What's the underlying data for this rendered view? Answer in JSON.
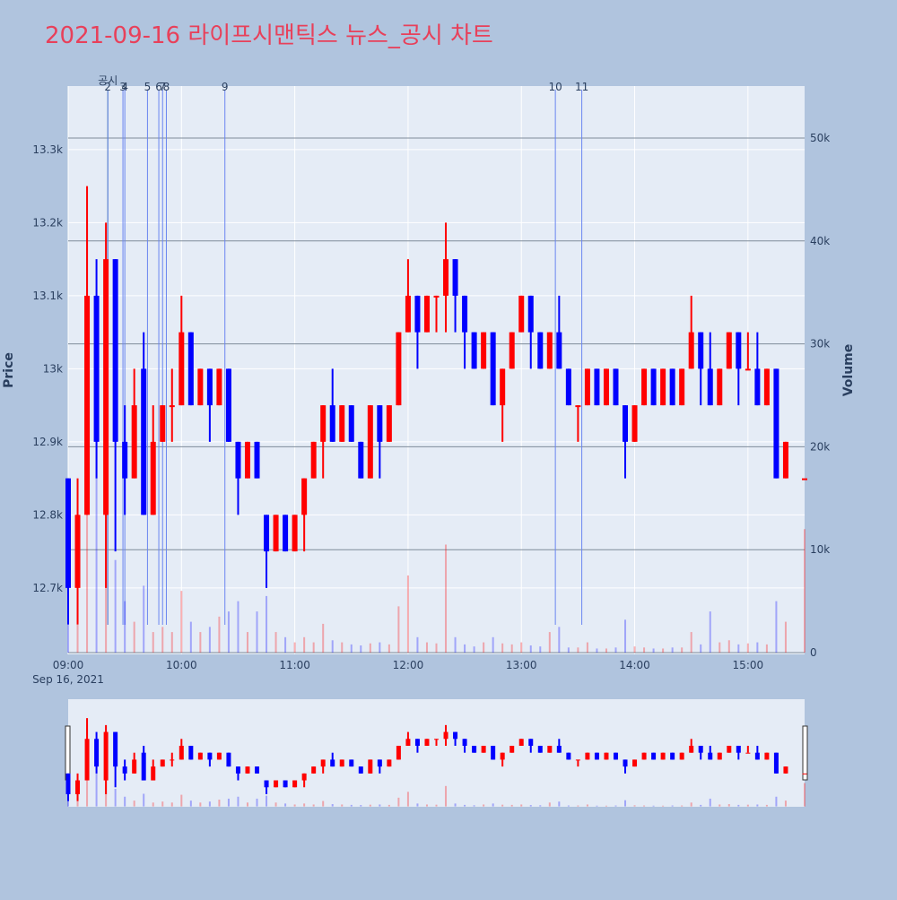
{
  "chart_data": {
    "type": "candlestick",
    "title": "2021-09-16 라이프시맨틱스 뉴스_공시 차트",
    "y_label": "Price",
    "y2_label": "Volume",
    "x_date_label": "Sep 16, 2021",
    "increasing_color": "#ff0000",
    "decreasing_color": "#0000ff",
    "x": [
      "2021-09-16 09:00",
      "2021-09-16 09:05",
      "2021-09-16 09:10",
      "2021-09-16 09:15",
      "2021-09-16 09:20",
      "2021-09-16 09:25",
      "2021-09-16 09:30",
      "2021-09-16 09:35",
      "2021-09-16 09:40",
      "2021-09-16 09:45",
      "2021-09-16 09:50",
      "2021-09-16 09:55",
      "2021-09-16 10:00",
      "2021-09-16 10:05",
      "2021-09-16 10:10",
      "2021-09-16 10:15",
      "2021-09-16 10:20",
      "2021-09-16 10:25",
      "2021-09-16 10:30",
      "2021-09-16 10:35",
      "2021-09-16 10:40",
      "2021-09-16 10:45",
      "2021-09-16 10:50",
      "2021-09-16 10:55",
      "2021-09-16 11:00",
      "2021-09-16 11:05",
      "2021-09-16 11:10",
      "2021-09-16 11:15",
      "2021-09-16 11:20",
      "2021-09-16 11:25",
      "2021-09-16 11:30",
      "2021-09-16 11:35",
      "2021-09-16 11:40",
      "2021-09-16 11:45",
      "2021-09-16 11:50",
      "2021-09-16 11:55",
      "2021-09-16 12:00",
      "2021-09-16 12:05",
      "2021-09-16 12:10",
      "2021-09-16 12:15",
      "2021-09-16 12:20",
      "2021-09-16 12:25",
      "2021-09-16 12:30",
      "2021-09-16 12:35",
      "2021-09-16 12:40",
      "2021-09-16 12:45",
      "2021-09-16 12:50",
      "2021-09-16 12:55",
      "2021-09-16 13:00",
      "2021-09-16 13:05",
      "2021-09-16 13:10",
      "2021-09-16 13:15",
      "2021-09-16 13:20",
      "2021-09-16 13:25",
      "2021-09-16 13:30",
      "2021-09-16 13:35",
      "2021-09-16 13:40",
      "2021-09-16 13:45",
      "2021-09-16 13:50",
      "2021-09-16 13:55",
      "2021-09-16 14:00",
      "2021-09-16 14:05",
      "2021-09-16 14:10",
      "2021-09-16 14:15",
      "2021-09-16 14:20",
      "2021-09-16 14:25",
      "2021-09-16 14:30",
      "2021-09-16 14:35",
      "2021-09-16 14:40",
      "2021-09-16 14:45",
      "2021-09-16 14:50",
      "2021-09-16 14:55",
      "2021-09-16 15:00",
      "2021-09-16 15:05",
      "2021-09-16 15:10",
      "2021-09-16 15:15",
      "2021-09-16 15:20",
      "2021-09-16 15:30"
    ],
    "open": [
      12850,
      12700,
      12800,
      13100,
      12800,
      13150,
      12900,
      12850,
      13000,
      12800,
      12900,
      12950,
      12950,
      13050,
      12950,
      13000,
      12950,
      13000,
      12900,
      12850,
      12900,
      12800,
      12750,
      12800,
      12750,
      12800,
      12850,
      12900,
      12950,
      12900,
      12950,
      12900,
      12850,
      12950,
      12900,
      12950,
      13050,
      13100,
      13050,
      13100,
      13100,
      13150,
      13100,
      13050,
      13000,
      13050,
      12950,
      13000,
      13050,
      13100,
      13050,
      13000,
      13050,
      13000,
      12950,
      12950,
      13000,
      12950,
      13000,
      12950,
      12900,
      12950,
      13000,
      12950,
      13000,
      12950,
      13000,
      13050,
      13000,
      12950,
      13000,
      13050,
      13000,
      13000,
      12950,
      13000,
      12850,
      12850
    ],
    "high": [
      12850,
      12850,
      13250,
      13150,
      13200,
      13150,
      12950,
      13000,
      13050,
      12950,
      12950,
      13000,
      13100,
      13050,
      13000,
      13000,
      13000,
      13000,
      12900,
      12900,
      12900,
      12800,
      12800,
      12800,
      12800,
      12850,
      12900,
      12950,
      13000,
      12950,
      12950,
      12900,
      12950,
      12950,
      12950,
      13050,
      13150,
      13100,
      13100,
      13100,
      13200,
      13150,
      13100,
      13050,
      13050,
      13050,
      13000,
      13050,
      13100,
      13100,
      13050,
      13050,
      13100,
      13000,
      12950,
      13000,
      13000,
      13000,
      13000,
      12950,
      12950,
      13000,
      13000,
      13000,
      13000,
      13000,
      13100,
      13050,
      13050,
      13000,
      13050,
      13050,
      13050,
      13050,
      13000,
      13000,
      12900,
      12850
    ],
    "low": [
      12650,
      12650,
      12800,
      12850,
      12700,
      12750,
      12800,
      12850,
      12800,
      12800,
      12900,
      12900,
      12950,
      12950,
      12950,
      12900,
      12950,
      12900,
      12800,
      12850,
      12850,
      12700,
      12750,
      12750,
      12750,
      12750,
      12850,
      12850,
      12900,
      12900,
      12900,
      12850,
      12850,
      12850,
      12900,
      12950,
      13050,
      13000,
      13050,
      13050,
      13050,
      13050,
      13000,
      13000,
      13000,
      12950,
      12900,
      13000,
      13050,
      13000,
      13000,
      13000,
      13000,
      12950,
      12900,
      12950,
      12950,
      12950,
      12950,
      12850,
      12900,
      12950,
      12950,
      12950,
      12950,
      12950,
      13000,
      12950,
      12950,
      12950,
      13000,
      12950,
      13000,
      12950,
      12950,
      12850,
      12850,
      12850
    ],
    "close": [
      12700,
      12800,
      13100,
      12900,
      13150,
      12900,
      12850,
      12950,
      12800,
      12900,
      12950,
      12950,
      13050,
      12950,
      13000,
      12950,
      13000,
      12900,
      12850,
      12900,
      12850,
      12750,
      12800,
      12750,
      12800,
      12850,
      12900,
      12950,
      12900,
      12950,
      12900,
      12850,
      12950,
      12900,
      12950,
      13050,
      13100,
      13050,
      13100,
      13100,
      13150,
      13100,
      13050,
      13000,
      13050,
      12950,
      13000,
      13050,
      13100,
      13050,
      13000,
      13050,
      13000,
      12950,
      12950,
      13000,
      12950,
      13000,
      12950,
      12900,
      12950,
      13000,
      12950,
      13000,
      12950,
      13000,
      13050,
      13000,
      12950,
      13000,
      13050,
      13000,
      13000,
      12950,
      13000,
      12850,
      12900,
      12850
    ],
    "volume": [
      4000,
      6000,
      42000,
      30000,
      20000,
      9000,
      5000,
      3000,
      6500,
      2000,
      2500,
      2000,
      6000,
      3000,
      2000,
      2500,
      3500,
      4000,
      5000,
      2000,
      4000,
      5500,
      2000,
      1500,
      1000,
      1500,
      1000,
      2800,
      1200,
      1000,
      800,
      700,
      900,
      1000,
      800,
      4500,
      7500,
      1500,
      1000,
      900,
      10500,
      1500,
      800,
      600,
      1000,
      1500,
      900,
      800,
      1000,
      700,
      600,
      2000,
      2500,
      500,
      500,
      1000,
      400,
      400,
      500,
      3200,
      600,
      500,
      400,
      400,
      500,
      500,
      2000,
      800,
      4000,
      1000,
      1200,
      800,
      900,
      1000,
      800,
      5000,
      3000,
      12000
    ],
    "xlim": [
      "2021-09-16 09:00",
      "2021-09-16 15:30"
    ],
    "xticks": [
      {
        "value": "2021-09-16 09:00",
        "label": "09:00"
      },
      {
        "value": "2021-09-16 10:00",
        "label": "10:00"
      },
      {
        "value": "2021-09-16 11:00",
        "label": "11:00"
      },
      {
        "value": "2021-09-16 12:00",
        "label": "12:00"
      },
      {
        "value": "2021-09-16 13:00",
        "label": "13:00"
      },
      {
        "value": "2021-09-16 14:00",
        "label": "14:00"
      },
      {
        "value": "2021-09-16 15:00",
        "label": "15:00"
      }
    ],
    "ylim": [
      12609,
      13387
    ],
    "yticks": [
      {
        "value": 12700,
        "label": "12.7k"
      },
      {
        "value": 12800,
        "label": "12.8k"
      },
      {
        "value": 12900,
        "label": "12.9k"
      },
      {
        "value": 13000,
        "label": "13k"
      },
      {
        "value": 13100,
        "label": "13.1k"
      },
      {
        "value": 13200,
        "label": "13.2k"
      },
      {
        "value": 13300,
        "label": "13.3k"
      }
    ],
    "y2lim": [
      -170,
      55050
    ],
    "y2ticks": [
      0,
      {
        "value": 10000,
        "label": "10k"
      },
      {
        "value": 20000,
        "label": "20k"
      },
      {
        "value": 30000,
        "label": "30k"
      },
      {
        "value": 40000,
        "label": "40k"
      },
      {
        "value": 50000,
        "label": "50k"
      }
    ],
    "annotations": [
      {
        "x": "2021-09-16 09:21",
        "label": "공시"
      },
      {
        "x": "2021-09-16 09:21",
        "label": "2"
      },
      {
        "x": "2021-09-16 09:29",
        "label": "3"
      },
      {
        "x": "2021-09-16 09:30",
        "label": "4"
      },
      {
        "x": "2021-09-16 09:42",
        "label": "5"
      },
      {
        "x": "2021-09-16 09:48",
        "label": "6"
      },
      {
        "x": "2021-09-16 09:50",
        "label": "7"
      },
      {
        "x": "2021-09-16 09:52",
        "label": "8"
      },
      {
        "x": "2021-09-16 10:23",
        "label": "9"
      },
      {
        "x": "2021-09-16 13:18",
        "label": "10"
      },
      {
        "x": "2021-09-16 13:32",
        "label": "11"
      }
    ]
  }
}
